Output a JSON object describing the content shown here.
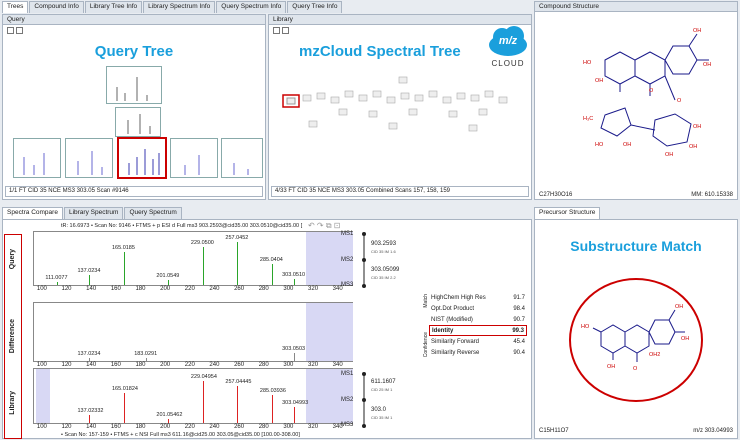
{
  "top_tabs": [
    "Trees",
    "Compound Info",
    "Library Tree Info",
    "Library Spectrum Info",
    "Query Spectrum Info",
    "Query Tree Info"
  ],
  "query_panel": {
    "header": "Query",
    "title": "Query Tree",
    "status": "1/1 FT CID 35 NCE MS3 303.05 Scan #9146"
  },
  "library_panel": {
    "header": "Library",
    "title": "mzCloud Spectral Tree",
    "logo_text": "m/z",
    "logo_sub": "CLOUD",
    "status": "4/33 FT CID 35 NCE MS3 303.05 Combined Scans 157, 158, 159"
  },
  "compound_panel": {
    "header": "Compound Structure",
    "formula": "C27H30O16",
    "mass": "MM: 610.15338"
  },
  "spectra_tabs": [
    "Spectra Compare",
    "Library Spectrum",
    "Query Spectrum"
  ],
  "query_plot": {
    "label": "Query",
    "header": "tR: 16.6973 • Scan No: 9146 • FTMS + p ESI d Full ms3 903.2593@cid35.00 303.0510@cid35.00 [",
    "peaks": [
      {
        "mz": 111.0077,
        "label": "111.0077"
      },
      {
        "mz": 137.0234,
        "label": "137.0234"
      },
      {
        "mz": 165.0185,
        "label": "165.0185"
      },
      {
        "mz": 201.0549,
        "label": "201.0549"
      },
      {
        "mz": 229.05,
        "label": "229.0500"
      },
      {
        "mz": 257.0452,
        "label": "257.0452"
      },
      {
        "mz": 285.0404,
        "label": "285.0404"
      },
      {
        "mz": 303.051,
        "label": "303.0510"
      }
    ]
  },
  "diff_plot": {
    "label": "Difference",
    "peaks": [
      {
        "mz": 137.0234,
        "label": "137.0234"
      },
      {
        "mz": 183.0291,
        "label": "183.0291"
      },
      {
        "mz": 303.0503,
        "label": "303.0503"
      }
    ]
  },
  "library_plot": {
    "label": "Library",
    "footer": "• Scan No: 157-159 • FTMS + c NSI Full ms3 611.16@cid25.00 303.05@cid35.00 [100.00-308.00]",
    "peaks": [
      {
        "mz": 137.02332,
        "label": "137.02332"
      },
      {
        "mz": 165.01824,
        "label": "165.01824"
      },
      {
        "mz": 201.05462,
        "label": "201.05462"
      },
      {
        "mz": 229.04954,
        "label": "229.04954"
      },
      {
        "mz": 257.04445,
        "label": "257.04445"
      },
      {
        "mz": 285.03936,
        "label": "285.03936"
      },
      {
        "mz": 303.04993,
        "label": "303.04993"
      }
    ]
  },
  "x_ticks": [
    "100",
    "120",
    "140",
    "160",
    "180",
    "200",
    "220",
    "240",
    "260",
    "280",
    "300",
    "320",
    "340"
  ],
  "ms_tree_query": {
    "ms1": "MS1",
    "ms2": "MS2",
    "ms3": "MS3",
    "v1": "903.2593",
    "n1": "CID 35 IM 1.6",
    "v2": "303.05099",
    "n2": "CID 35 IM 2.2"
  },
  "ms_tree_lib": {
    "ms1": "MS1",
    "ms2": "MS2",
    "ms3": "MS3",
    "v1": "611.1607",
    "n1": "CID 25 IM 1",
    "v2": "303.0",
    "n2": "CID 35 IM 1"
  },
  "scores": {
    "match_label": "Match",
    "confidence_label": "Confidence",
    "rows": [
      {
        "name": "HighChem High Res",
        "value": "91.7"
      },
      {
        "name": "Opt.Dot Product",
        "value": "98.4"
      },
      {
        "name": "NIST (Modified)",
        "value": "90.7"
      },
      {
        "name": "Identity",
        "value": "99.3"
      },
      {
        "name": "Similarity Forward",
        "value": "45.4"
      },
      {
        "name": "Similarity Reverse",
        "value": "90.4"
      }
    ]
  },
  "precursor_panel": {
    "header": "Precursor Structure",
    "title": "Substructure Match",
    "formula": "C15H11O7",
    "mass": "m/z 303.04993",
    "ion_label": "OH2"
  },
  "colors": {
    "query": "#2aa52a",
    "library": "#dd2222",
    "diff": "#888888",
    "accent": "#1a9fdc",
    "highlight": "#cc0000"
  }
}
